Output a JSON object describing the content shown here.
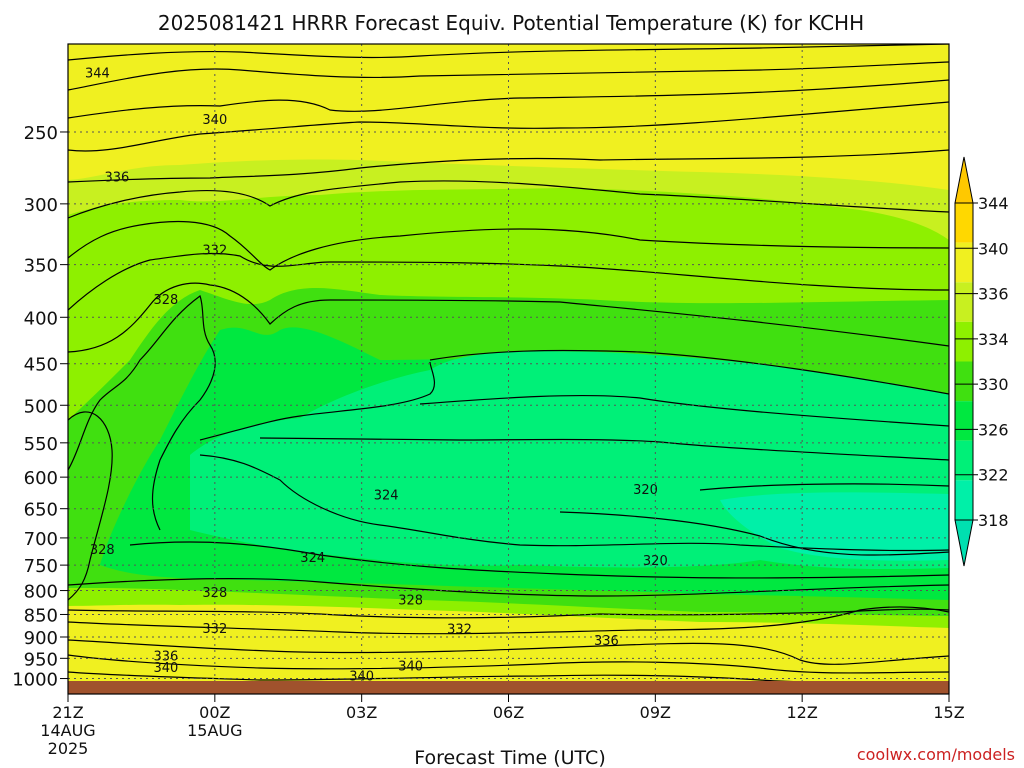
{
  "title": "2025081421 HRRR Forecast Equiv. Potential Temperature (K) for KCHH",
  "xlabel": "Forecast Time (UTC)",
  "credit": "coolwx.com/models",
  "colors": {
    "ground": "#a0522d",
    "credit": "#cc2222",
    "contour_line": "#000000",
    "grid": "#555555"
  },
  "chart_data": {
    "type": "heatmap",
    "title": "2025081421 HRRR Forecast Equiv. Potential Temperature (K) for KCHH",
    "xlabel": "Forecast Time (UTC)",
    "ylabel": "",
    "y_scale": "log-pressure",
    "ylim_hPa": [
      1040,
      200
    ],
    "x_ticks": [
      {
        "label": "21Z",
        "sub": [
          "14AUG",
          "2025"
        ]
      },
      {
        "label": "00Z",
        "sub": [
          "15AUG"
        ]
      },
      {
        "label": "03Z",
        "sub": []
      },
      {
        "label": "06Z",
        "sub": []
      },
      {
        "label": "09Z",
        "sub": []
      },
      {
        "label": "12Z",
        "sub": []
      },
      {
        "label": "15Z",
        "sub": []
      }
    ],
    "y_ticks": [
      "250",
      "300",
      "350",
      "400",
      "450",
      "500",
      "550",
      "600",
      "650",
      "700",
      "750",
      "800",
      "850",
      "900",
      "950",
      "1000"
    ],
    "grid": true,
    "colorbar": {
      "levels": [
        318,
        322,
        326,
        330,
        334,
        336,
        340,
        344
      ],
      "labels": [
        "318",
        "322",
        "326",
        "330",
        "334",
        "336",
        "340",
        "344"
      ],
      "bands": [
        "#00f0a8",
        "#00f078",
        "#00e840",
        "#40e010",
        "#8ef000",
        "#c8f020",
        "#f0f020",
        "#ffd800"
      ],
      "extend_low": "#00e0b0",
      "extend_high": "#ffc800"
    },
    "contour_labels": [
      {
        "value": "344",
        "hour": 0.6,
        "p": 215
      },
      {
        "value": "340",
        "hour": 3.0,
        "p": 242
      },
      {
        "value": "336",
        "hour": 1.0,
        "p": 280
      },
      {
        "value": "332",
        "hour": 3.0,
        "p": 337
      },
      {
        "value": "328",
        "hour": 2.0,
        "p": 382
      },
      {
        "value": "324",
        "hour": 6.5,
        "p": 627
      },
      {
        "value": "320",
        "hour": 11.8,
        "p": 618
      },
      {
        "value": "328",
        "hour": 0.7,
        "p": 720
      },
      {
        "value": "324",
        "hour": 5.0,
        "p": 735
      },
      {
        "value": "320",
        "hour": 12.0,
        "p": 740
      },
      {
        "value": "328",
        "hour": 3.0,
        "p": 803
      },
      {
        "value": "328",
        "hour": 7.0,
        "p": 818
      },
      {
        "value": "332",
        "hour": 3.0,
        "p": 880
      },
      {
        "value": "332",
        "hour": 8.0,
        "p": 881
      },
      {
        "value": "336",
        "hour": 11.0,
        "p": 907
      },
      {
        "value": "336",
        "hour": 2.0,
        "p": 943
      },
      {
        "value": "340",
        "hour": 2.0,
        "p": 971
      },
      {
        "value": "340",
        "hour": 7.0,
        "p": 967
      },
      {
        "value": "340",
        "hour": 6.0,
        "p": 992
      }
    ]
  }
}
